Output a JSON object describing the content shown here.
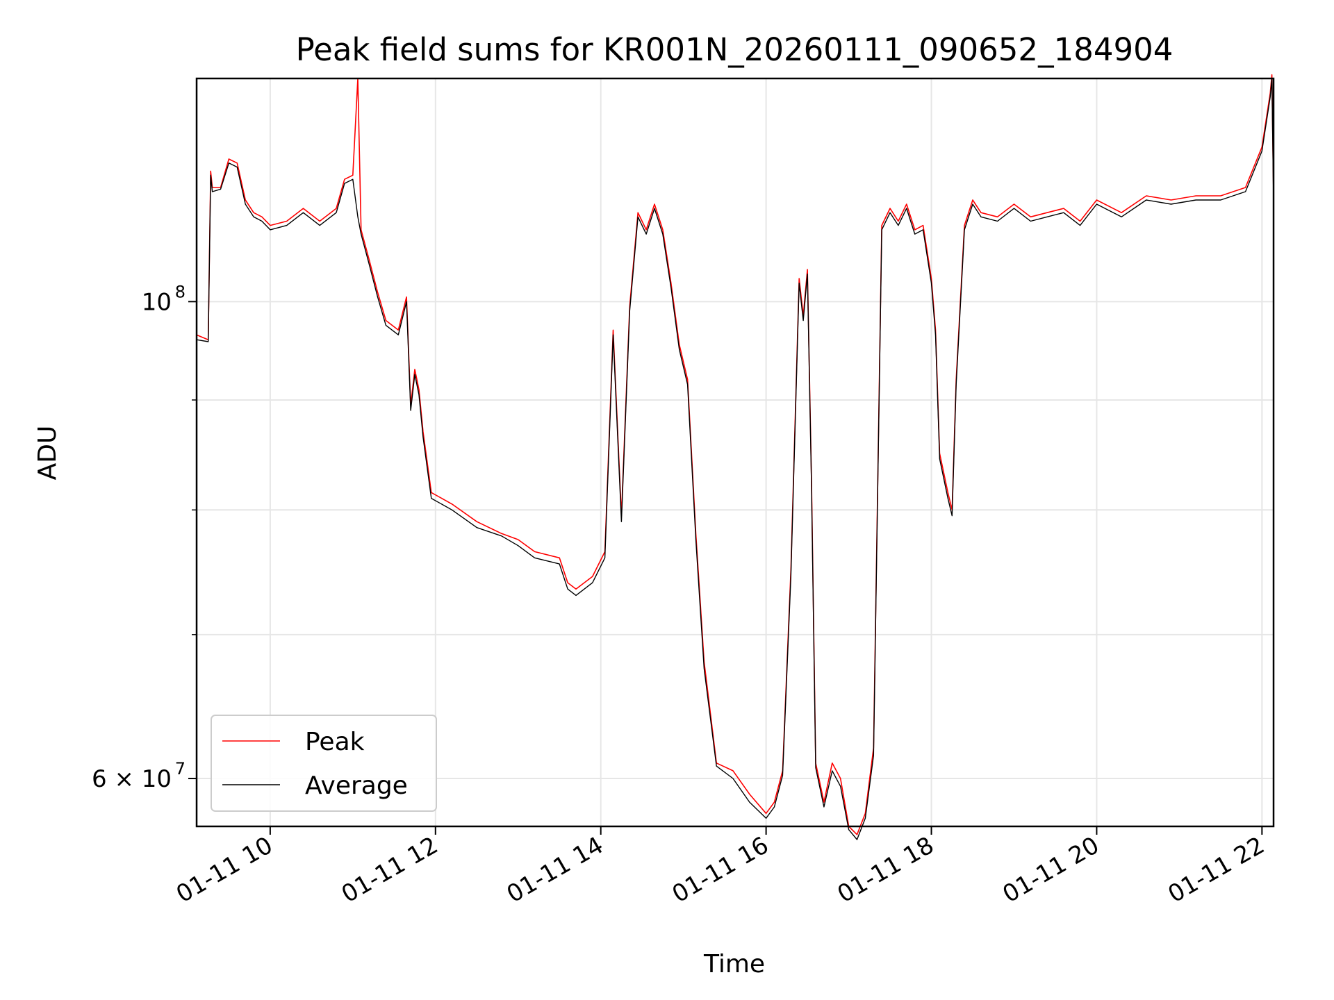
{
  "chart_data": {
    "type": "line",
    "title": "Peak field sums for KR001N_20260111_090652_184904",
    "xlabel": "Time",
    "ylabel": "ADU",
    "yscale": "log",
    "grid": true,
    "legend_position": "lower-left",
    "xlim": [
      9.11,
      22.14
    ],
    "ylim": [
      57000000,
      127000000
    ],
    "x_ticks": [
      {
        "value": 10,
        "label": "01-11 10"
      },
      {
        "value": 12,
        "label": "01-11 12"
      },
      {
        "value": 14,
        "label": "01-11 14"
      },
      {
        "value": 16,
        "label": "01-11 16"
      },
      {
        "value": 18,
        "label": "01-11 18"
      },
      {
        "value": 20,
        "label": "01-11 20"
      },
      {
        "value": 22,
        "label": "01-11 22"
      }
    ],
    "y_ticks": [
      {
        "value": 100000000,
        "base": "10",
        "exp": "8"
      },
      {
        "value": 60000000,
        "base": "6 × 10",
        "exp": "7"
      }
    ],
    "y_minor_grid": [
      70000000,
      80000000,
      90000000
    ],
    "series": [
      {
        "name": "Peak",
        "color": "#ff0000",
        "x": [
          9.11,
          9.25,
          9.28,
          9.3,
          9.4,
          9.5,
          9.6,
          9.7,
          9.8,
          9.9,
          10.0,
          10.2,
          10.4,
          10.6,
          10.8,
          10.9,
          11.0,
          11.06,
          11.1,
          11.2,
          11.3,
          11.4,
          11.55,
          11.65,
          11.7,
          11.75,
          11.8,
          11.85,
          11.95,
          12.2,
          12.5,
          12.8,
          13.0,
          13.2,
          13.5,
          13.6,
          13.7,
          13.9,
          14.05,
          14.15,
          14.25,
          14.35,
          14.45,
          14.55,
          14.65,
          14.75,
          14.85,
          14.95,
          15.05,
          15.15,
          15.25,
          15.4,
          15.6,
          15.8,
          16.0,
          16.1,
          16.2,
          16.3,
          16.4,
          16.45,
          16.5,
          16.55,
          16.6,
          16.7,
          16.8,
          16.9,
          17.0,
          17.1,
          17.2,
          17.3,
          17.4,
          17.5,
          17.6,
          17.7,
          17.8,
          17.9,
          18.0,
          18.05,
          18.1,
          18.2,
          18.25,
          18.3,
          18.4,
          18.5,
          18.6,
          18.8,
          19.0,
          19.2,
          19.4,
          19.6,
          19.8,
          20.0,
          20.3,
          20.6,
          20.9,
          21.2,
          21.5,
          21.8,
          22.0,
          22.1,
          22.12,
          22.14
        ],
        "values": [
          96500000,
          96000000,
          115000000,
          113000000,
          113000000,
          116500000,
          116000000,
          111500000,
          110000000,
          109500000,
          108500000,
          109000000,
          110500000,
          109000000,
          110500000,
          114000000,
          114500000,
          127000000,
          108000000,
          104500000,
          101000000,
          98000000,
          97000000,
          100500000,
          89500000,
          93000000,
          91000000,
          87000000,
          81500000,
          80500000,
          79000000,
          78000000,
          77500000,
          76500000,
          76000000,
          74000000,
          73500000,
          74500000,
          76500000,
          97000000,
          79500000,
          99500000,
          110000000,
          108000000,
          111000000,
          108000000,
          102000000,
          95500000,
          92000000,
          78000000,
          68000000,
          61000000,
          60500000,
          59000000,
          57800000,
          58500000,
          60500000,
          75000000,
          102500000,
          98500000,
          103500000,
          82500000,
          61000000,
          58500000,
          61000000,
          60000000,
          57000000,
          56500000,
          57800000,
          62000000,
          108500000,
          110500000,
          109000000,
          111000000,
          108000000,
          108500000,
          102500000,
          97000000,
          85000000,
          81500000,
          80000000,
          92000000,
          108500000,
          111500000,
          110000000,
          109500000,
          111000000,
          109500000,
          110000000,
          110500000,
          109000000,
          111500000,
          110000000,
          112000000,
          111500000,
          112000000,
          112000000,
          113000000,
          118000000,
          125000000,
          127500000,
          112000000
        ]
      },
      {
        "name": "Average",
        "color": "#000000",
        "x": [
          9.11,
          9.25,
          9.28,
          9.3,
          9.4,
          9.5,
          9.6,
          9.7,
          9.8,
          9.9,
          10.0,
          10.2,
          10.4,
          10.6,
          10.8,
          10.9,
          11.0,
          11.06,
          11.1,
          11.2,
          11.3,
          11.4,
          11.55,
          11.65,
          11.7,
          11.75,
          11.8,
          11.85,
          11.95,
          12.2,
          12.5,
          12.8,
          13.0,
          13.2,
          13.5,
          13.6,
          13.7,
          13.9,
          14.05,
          14.15,
          14.25,
          14.35,
          14.45,
          14.55,
          14.65,
          14.75,
          14.85,
          14.95,
          15.05,
          15.15,
          15.25,
          15.4,
          15.6,
          15.8,
          16.0,
          16.1,
          16.2,
          16.3,
          16.4,
          16.45,
          16.5,
          16.55,
          16.6,
          16.7,
          16.8,
          16.9,
          17.0,
          17.1,
          17.2,
          17.3,
          17.4,
          17.5,
          17.6,
          17.7,
          17.8,
          17.9,
          18.0,
          18.05,
          18.1,
          18.2,
          18.25,
          18.3,
          18.4,
          18.5,
          18.6,
          18.8,
          19.0,
          19.2,
          19.4,
          19.6,
          19.8,
          20.0,
          20.3,
          20.6,
          20.9,
          21.2,
          21.5,
          21.8,
          22.0,
          22.1,
          22.12,
          22.14
        ],
        "values": [
          96000000,
          95800000,
          114500000,
          112500000,
          112800000,
          116000000,
          115500000,
          111000000,
          109500000,
          109000000,
          108000000,
          108500000,
          110000000,
          108500000,
          110000000,
          113500000,
          114000000,
          109500000,
          107500000,
          104000000,
          100500000,
          97500000,
          96500000,
          100000000,
          89000000,
          92500000,
          90500000,
          86500000,
          81000000,
          80000000,
          78500000,
          77800000,
          77000000,
          76000000,
          75500000,
          73500000,
          73000000,
          74000000,
          76000000,
          96500000,
          79000000,
          99000000,
          109500000,
          107500000,
          110500000,
          107500000,
          101500000,
          95000000,
          91500000,
          77500000,
          67500000,
          60800000,
          60000000,
          58500000,
          57500000,
          58200000,
          60200000,
          74500000,
          102000000,
          98000000,
          103000000,
          82000000,
          60700000,
          58200000,
          60500000,
          59500000,
          56800000,
          56200000,
          57500000,
          61500000,
          108000000,
          110000000,
          108500000,
          110500000,
          107500000,
          108000000,
          102000000,
          96500000,
          84500000,
          81000000,
          79500000,
          91500000,
          108000000,
          111000000,
          109500000,
          109000000,
          110500000,
          109000000,
          109500000,
          110000000,
          108500000,
          111000000,
          109500000,
          111500000,
          111000000,
          111500000,
          111500000,
          112500000,
          117500000,
          124500000,
          127000000,
          111500000
        ]
      }
    ]
  }
}
